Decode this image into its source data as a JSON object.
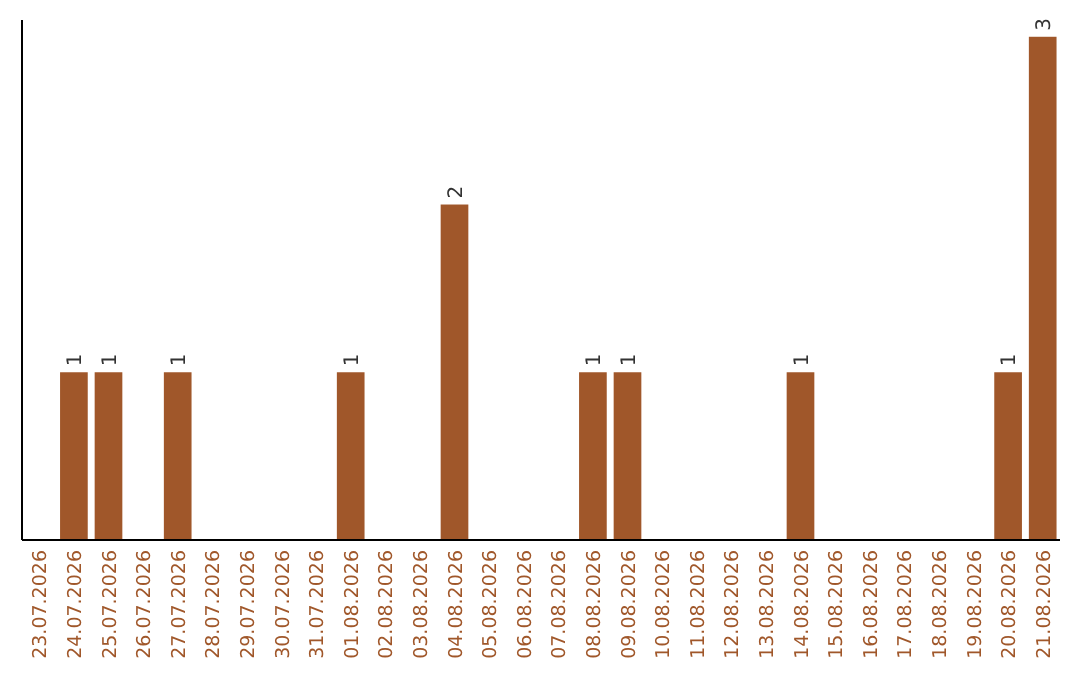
{
  "chart_data": {
    "type": "bar",
    "categories": [
      "23.07.2026",
      "24.07.2026",
      "25.07.2026",
      "26.07.2026",
      "27.07.2026",
      "28.07.2026",
      "29.07.2026",
      "30.07.2026",
      "31.07.2026",
      "01.08.2026",
      "02.08.2026",
      "03.08.2026",
      "04.08.2026",
      "05.08.2026",
      "06.08.2026",
      "07.08.2026",
      "08.08.2026",
      "09.08.2026",
      "10.08.2026",
      "11.08.2026",
      "12.08.2026",
      "13.08.2026",
      "14.08.2026",
      "15.08.2026",
      "16.08.2026",
      "17.08.2026",
      "18.08.2026",
      "19.08.2026",
      "20.08.2026",
      "21.08.2026"
    ],
    "values": [
      0,
      1,
      1,
      0,
      1,
      0,
      0,
      0,
      0,
      1,
      0,
      0,
      2,
      0,
      0,
      0,
      1,
      1,
      0,
      0,
      0,
      0,
      1,
      0,
      0,
      0,
      0,
      0,
      1,
      3
    ],
    "value_labels": [
      null,
      "1",
      "1",
      null,
      "1",
      null,
      null,
      null,
      null,
      "1",
      null,
      null,
      "2",
      null,
      null,
      null,
      "1",
      "1",
      null,
      null,
      null,
      null,
      "1",
      null,
      null,
      null,
      null,
      null,
      "1",
      "3"
    ],
    "color": "#a0572a",
    "ylim": [
      0,
      3.1
    ],
    "tick_labels": "x"
  }
}
